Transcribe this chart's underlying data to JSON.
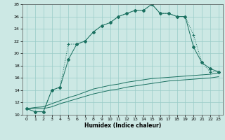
{
  "xlabel": "Humidex (Indice chaleur)",
  "bg_color": "#cce8e4",
  "grid_color": "#99ccc8",
  "line_color": "#1a7060",
  "xlim": [
    -0.5,
    23.5
  ],
  "ylim": [
    10,
    28
  ],
  "xticks": [
    0,
    1,
    2,
    3,
    4,
    5,
    6,
    7,
    8,
    9,
    10,
    11,
    12,
    13,
    14,
    15,
    16,
    17,
    18,
    19,
    20,
    21,
    22,
    23
  ],
  "yticks": [
    10,
    12,
    14,
    16,
    18,
    20,
    22,
    24,
    26,
    28
  ],
  "curve1_x": [
    0,
    1,
    2,
    3,
    4,
    5,
    6,
    7,
    8,
    9,
    10,
    11,
    12,
    13,
    14,
    15,
    16,
    17,
    18,
    19,
    20,
    21,
    22,
    23
  ],
  "curve1_y": [
    11.0,
    10.5,
    10.5,
    14.0,
    14.5,
    21.5,
    21.5,
    22.0,
    23.5,
    24.5,
    25.0,
    26.0,
    26.5,
    27.0,
    27.0,
    28.0,
    26.5,
    26.5,
    26.0,
    26.0,
    23.0,
    18.5,
    17.0,
    17.0
  ],
  "curve2_x": [
    0,
    1,
    2,
    3,
    4,
    5,
    6,
    7,
    8,
    9,
    10,
    11,
    12,
    13,
    14,
    15,
    16,
    17,
    18,
    19,
    20,
    21,
    22,
    23
  ],
  "curve2_y": [
    11.0,
    10.5,
    10.5,
    14.0,
    14.5,
    19.0,
    21.5,
    22.0,
    23.5,
    24.5,
    25.0,
    26.0,
    26.5,
    27.0,
    27.0,
    28.0,
    26.5,
    26.5,
    26.0,
    26.0,
    21.0,
    18.5,
    17.5,
    17.0
  ],
  "curve3_x": [
    0,
    1,
    2,
    3,
    4,
    5,
    6,
    7,
    8,
    9,
    10,
    11,
    12,
    13,
    14,
    15,
    16,
    17,
    18,
    19,
    20,
    21,
    22,
    23
  ],
  "curve3_y": [
    11.0,
    11.2,
    11.3,
    11.8,
    12.3,
    12.8,
    13.2,
    13.7,
    14.2,
    14.5,
    14.8,
    15.0,
    15.3,
    15.5,
    15.7,
    15.9,
    16.0,
    16.1,
    16.2,
    16.3,
    16.4,
    16.5,
    16.6,
    16.8
  ],
  "curve4_x": [
    0,
    1,
    2,
    3,
    4,
    5,
    6,
    7,
    8,
    9,
    10,
    11,
    12,
    13,
    14,
    15,
    16,
    17,
    18,
    19,
    20,
    21,
    22,
    23
  ],
  "curve4_y": [
    11.0,
    11.0,
    11.0,
    11.3,
    11.8,
    12.2,
    12.6,
    13.0,
    13.4,
    13.7,
    14.0,
    14.2,
    14.5,
    14.7,
    14.9,
    15.1,
    15.3,
    15.5,
    15.6,
    15.7,
    15.8,
    15.9,
    16.0,
    16.2
  ]
}
